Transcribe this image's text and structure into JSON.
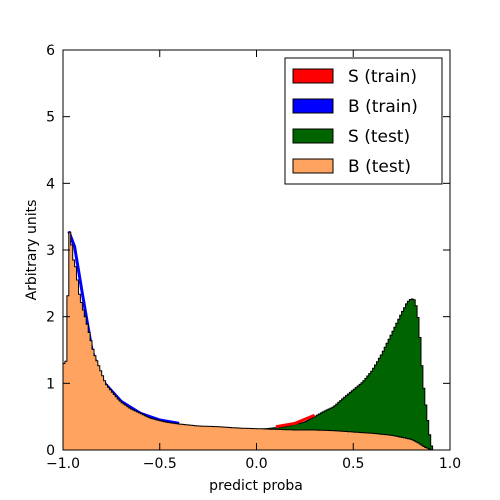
{
  "chart_data": {
    "type": "histogram",
    "xlabel": "predict proba",
    "ylabel": "Arbitrary units",
    "xlim": [
      -1.0,
      1.0
    ],
    "ylim": [
      0,
      6
    ],
    "xticks": [
      "−1.0",
      "−0.5",
      "0.0",
      "0.5",
      "1.0"
    ],
    "xtick_values": [
      -1.0,
      -0.5,
      0.0,
      0.5,
      1.0
    ],
    "yticks": [
      "0",
      "1",
      "2",
      "3",
      "4",
      "5",
      "6"
    ],
    "ytick_values": [
      0,
      1,
      2,
      3,
      4,
      5,
      6
    ],
    "legend_position": "top-right",
    "legend": [
      {
        "label": "S (train)",
        "color": "#ff0000"
      },
      {
        "label": "B (train)",
        "color": "#0000ff"
      },
      {
        "label": "S (test)",
        "color": "#006400"
      },
      {
        "label": "B (test)",
        "color": "#ffa460"
      }
    ],
    "series": [
      {
        "name": "S (test)",
        "color": "#006400",
        "points": [
          [
            -1.0,
            0.0
          ],
          [
            0.05,
            0.32
          ],
          [
            0.15,
            0.35
          ],
          [
            0.25,
            0.42
          ],
          [
            0.3,
            0.5
          ],
          [
            0.35,
            0.58
          ],
          [
            0.4,
            0.65
          ],
          [
            0.45,
            0.78
          ],
          [
            0.5,
            0.9
          ],
          [
            0.55,
            1.02
          ],
          [
            0.6,
            1.2
          ],
          [
            0.65,
            1.45
          ],
          [
            0.7,
            1.75
          ],
          [
            0.75,
            2.05
          ],
          [
            0.78,
            2.22
          ],
          [
            0.8,
            2.27
          ],
          [
            0.82,
            2.25
          ],
          [
            0.84,
            1.9
          ],
          [
            0.86,
            1.05
          ],
          [
            0.88,
            0.55
          ],
          [
            0.9,
            0.12
          ],
          [
            0.91,
            0.0
          ]
        ]
      },
      {
        "name": "S (train)",
        "color": "#ff0000",
        "points": [
          [
            0.1,
            0.35
          ],
          [
            0.2,
            0.4
          ],
          [
            0.3,
            0.52
          ]
        ]
      },
      {
        "name": "B (train)",
        "color": "#0000ff",
        "points": [
          [
            -0.97,
            3.28
          ],
          [
            -0.94,
            3.05
          ],
          [
            -0.9,
            2.35
          ],
          [
            -0.85,
            1.5
          ],
          [
            -0.8,
            1.05
          ],
          [
            -0.7,
            0.73
          ],
          [
            -0.6,
            0.55
          ],
          [
            -0.5,
            0.45
          ],
          [
            -0.4,
            0.4
          ]
        ]
      },
      {
        "name": "B (test)",
        "color": "#ffa460",
        "points": [
          [
            -1.0,
            1.28
          ],
          [
            -0.98,
            1.35
          ],
          [
            -0.97,
            3.28
          ],
          [
            -0.96,
            3.25
          ],
          [
            -0.95,
            2.9
          ],
          [
            -0.93,
            2.7
          ],
          [
            -0.92,
            2.4
          ],
          [
            -0.9,
            2.15
          ],
          [
            -0.88,
            1.95
          ],
          [
            -0.86,
            1.7
          ],
          [
            -0.84,
            1.45
          ],
          [
            -0.82,
            1.3
          ],
          [
            -0.8,
            1.15
          ],
          [
            -0.78,
            1.0
          ],
          [
            -0.76,
            0.92
          ],
          [
            -0.74,
            0.85
          ],
          [
            -0.72,
            0.78
          ],
          [
            -0.7,
            0.72
          ],
          [
            -0.65,
            0.62
          ],
          [
            -0.6,
            0.55
          ],
          [
            -0.55,
            0.48
          ],
          [
            -0.5,
            0.44
          ],
          [
            -0.45,
            0.41
          ],
          [
            -0.4,
            0.39
          ],
          [
            -0.3,
            0.36
          ],
          [
            -0.2,
            0.35
          ],
          [
            -0.1,
            0.33
          ],
          [
            0.0,
            0.32
          ],
          [
            0.1,
            0.31
          ],
          [
            0.2,
            0.3
          ],
          [
            0.3,
            0.3
          ],
          [
            0.4,
            0.29
          ],
          [
            0.5,
            0.27
          ],
          [
            0.6,
            0.25
          ],
          [
            0.7,
            0.22
          ],
          [
            0.75,
            0.19
          ],
          [
            0.8,
            0.16
          ],
          [
            0.84,
            0.1
          ],
          [
            0.86,
            0.06
          ],
          [
            0.88,
            0.03
          ],
          [
            0.9,
            0.01
          ],
          [
            0.91,
            0.0
          ]
        ]
      }
    ]
  }
}
